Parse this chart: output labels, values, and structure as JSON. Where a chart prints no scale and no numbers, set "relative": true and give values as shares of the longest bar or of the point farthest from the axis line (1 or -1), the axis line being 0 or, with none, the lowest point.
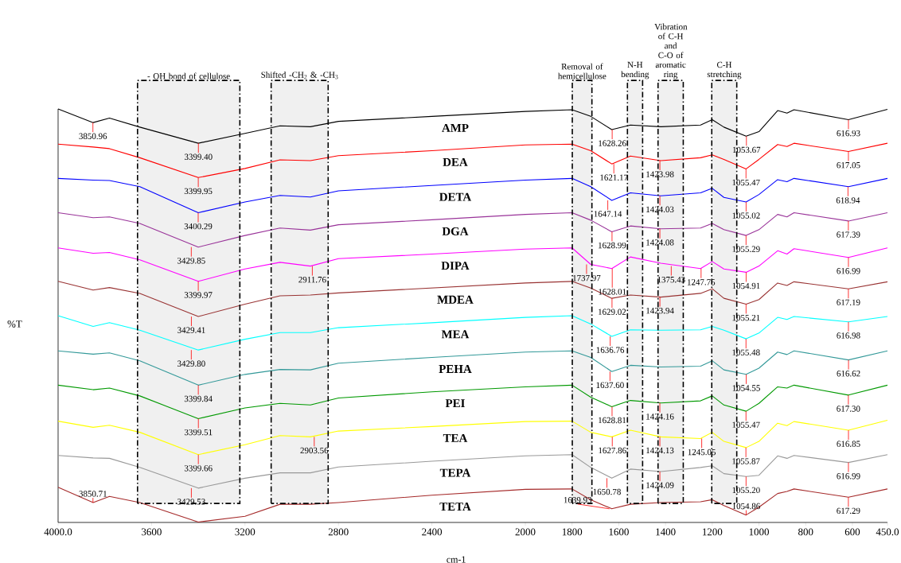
{
  "chart_data": {
    "type": "line",
    "relative": true,
    "xlabel": "cm-1",
    "ylabel": "%T",
    "xlim": [
      4000,
      450
    ],
    "xticks": [
      {
        "value": 4000,
        "label": "4000.0"
      },
      3600,
      3200,
      2800,
      2400,
      2000,
      1800,
      1600,
      1400,
      1200,
      1000,
      800,
      600,
      {
        "value": 450,
        "label": "450.0"
      }
    ],
    "x": [
      4000,
      3850,
      3780,
      3650,
      3400,
      3200,
      3050,
      2920,
      2800,
      2400,
      2000,
      1800,
      1720,
      1630,
      1550,
      1420,
      1250,
      1200,
      1150,
      1055,
      1000,
      920,
      880,
      850,
      617,
      450
    ],
    "series": [
      {
        "name": "AMP",
        "color": "#000000",
        "values": [
          1.0,
          0.967,
          0.978,
          0.956,
          0.917,
          0.941,
          0.959,
          0.957,
          0.97,
          0.982,
          0.994,
          0.998,
          0.982,
          0.95,
          0.961,
          0.957,
          0.961,
          0.974,
          0.956,
          0.934,
          0.945,
          0.996,
          0.99,
          0.998,
          0.974,
          0.999
        ]
      },
      {
        "name": "DEA",
        "color": "#ff0000",
        "values": [
          0.915,
          0.908,
          0.904,
          0.882,
          0.834,
          0.856,
          0.877,
          0.875,
          0.887,
          0.899,
          0.913,
          0.915,
          0.899,
          0.867,
          0.886,
          0.875,
          0.882,
          0.889,
          0.878,
          0.855,
          0.878,
          0.914,
          0.909,
          0.917,
          0.897,
          0.917
        ]
      },
      {
        "name": "DETA",
        "color": "#0000ff",
        "values": [
          0.832,
          0.828,
          0.827,
          0.812,
          0.749,
          0.775,
          0.791,
          0.787,
          0.802,
          0.815,
          0.828,
          0.832,
          0.812,
          0.779,
          0.797,
          0.79,
          0.797,
          0.808,
          0.786,
          0.775,
          0.793,
          0.829,
          0.824,
          0.832,
          0.812,
          0.832
        ]
      },
      {
        "name": "DGA",
        "color": "#993399",
        "values": [
          0.749,
          0.737,
          0.739,
          0.723,
          0.666,
          0.694,
          0.712,
          0.707,
          0.72,
          0.732,
          0.745,
          0.749,
          0.731,
          0.703,
          0.717,
          0.71,
          0.712,
          0.723,
          0.708,
          0.694,
          0.708,
          0.745,
          0.739,
          0.749,
          0.729,
          0.749
        ]
      },
      {
        "name": "DIPA",
        "color": "#ff00ff",
        "values": [
          0.664,
          0.651,
          0.653,
          0.635,
          0.583,
          0.613,
          0.629,
          0.62,
          0.638,
          0.649,
          0.661,
          0.664,
          0.624,
          0.614,
          0.642,
          0.627,
          0.614,
          0.631,
          0.613,
          0.605,
          0.62,
          0.657,
          0.649,
          0.662,
          0.641,
          0.664
        ]
      },
      {
        "name": "MDEA",
        "color": "#993333",
        "values": [
          0.583,
          0.562,
          0.568,
          0.554,
          0.498,
          0.528,
          0.548,
          0.55,
          0.555,
          0.567,
          0.579,
          0.583,
          0.567,
          0.542,
          0.55,
          0.545,
          0.554,
          0.565,
          0.542,
          0.528,
          0.539,
          0.579,
          0.573,
          0.582,
          0.565,
          0.582
        ]
      },
      {
        "name": "MEA",
        "color": "#00ffff",
        "values": [
          0.5,
          0.474,
          0.483,
          0.465,
          0.417,
          0.443,
          0.459,
          0.459,
          0.471,
          0.483,
          0.496,
          0.5,
          0.48,
          0.45,
          0.466,
          0.465,
          0.466,
          0.474,
          0.465,
          0.444,
          0.458,
          0.496,
          0.491,
          0.498,
          0.485,
          0.498
        ]
      },
      {
        "name": "PEHA",
        "color": "#339999",
        "values": [
          0.415,
          0.407,
          0.41,
          0.391,
          0.332,
          0.358,
          0.37,
          0.369,
          0.385,
          0.399,
          0.412,
          0.415,
          0.399,
          0.365,
          0.38,
          0.376,
          0.378,
          0.391,
          0.369,
          0.358,
          0.373,
          0.412,
          0.406,
          0.415,
          0.393,
          0.415
        ]
      },
      {
        "name": "PEI",
        "color": "#009900",
        "values": [
          0.332,
          0.321,
          0.325,
          0.306,
          0.251,
          0.277,
          0.288,
          0.284,
          0.301,
          0.316,
          0.328,
          0.332,
          0.303,
          0.28,
          0.295,
          0.289,
          0.294,
          0.306,
          0.284,
          0.269,
          0.288,
          0.328,
          0.325,
          0.332,
          0.308,
          0.332
        ]
      },
      {
        "name": "TEA",
        "color": "#ffff00",
        "values": [
          0.245,
          0.23,
          0.235,
          0.218,
          0.164,
          0.188,
          0.21,
          0.207,
          0.221,
          0.232,
          0.244,
          0.245,
          0.218,
          0.207,
          0.223,
          0.207,
          0.203,
          0.218,
          0.196,
          0.181,
          0.196,
          0.24,
          0.234,
          0.244,
          0.223,
          0.247
        ]
      },
      {
        "name": "TEPA",
        "color": "#999999",
        "values": [
          0.162,
          0.156,
          0.155,
          0.133,
          0.083,
          0.107,
          0.12,
          0.12,
          0.134,
          0.148,
          0.161,
          0.164,
          0.133,
          0.107,
          0.129,
          0.123,
          0.133,
          0.137,
          0.118,
          0.111,
          0.114,
          0.161,
          0.155,
          0.162,
          0.145,
          0.164
        ]
      },
      {
        "name": "TETA",
        "color": "#a52a2a",
        "values": [
          0.085,
          0.048,
          0.063,
          0.048,
          0.001,
          0.015,
          0.044,
          0.044,
          0.048,
          0.066,
          0.08,
          0.081,
          0.055,
          0.033,
          0.044,
          0.048,
          0.05,
          0.055,
          0.041,
          0.018,
          0.037,
          0.07,
          0.075,
          0.081,
          0.061,
          0.081
        ]
      }
    ],
    "bands": [
      {
        "axis": "x",
        "from": 3660,
        "to": 3222,
        "label": "- OH bond of cellulose",
        "color": "#f0f0f0"
      },
      {
        "axis": "x",
        "from": 3088,
        "to": 2844,
        "label": "Shifted -CH$_{2}$ & -CH$_{3}$",
        "color": "#f0f0f0"
      },
      {
        "axis": "x",
        "from": 1799,
        "to": 1715,
        "label": "Removal of hemicellulose",
        "color": "#f0f0f0"
      },
      {
        "axis": "x",
        "from": 1563,
        "to": 1498,
        "label": "N-H bending",
        "color": "#f0f0f0"
      },
      {
        "axis": "x",
        "from": 1432,
        "to": 1324,
        "label": "Vibration of  C-H and C-O of aromatic ring",
        "color": "#f0f0f0"
      },
      {
        "axis": "x",
        "from": 1202,
        "to": 1095,
        "label": "C-H stretching",
        "color": "#f0f0f0"
      }
    ],
    "annotations": [
      {
        "text": "3850.96",
        "x": 3850.96,
        "y": 0.967
      },
      {
        "text": "3399.40",
        "x": 3399.4,
        "y": 0.917
      },
      {
        "text": "1628.26",
        "x": 1628.26,
        "y": 0.95
      },
      {
        "text": "1053.67",
        "x": 1053.67,
        "y": 0.934
      },
      {
        "text": "616.93",
        "x": 616.93,
        "y": 0.974
      },
      {
        "text": "3399.95",
        "x": 3399.95,
        "y": 0.834
      },
      {
        "text": "1621.17",
        "x": 1621.17,
        "y": 0.867
      },
      {
        "text": "1423.98",
        "x": 1423.98,
        "y": 0.875
      },
      {
        "text": "1055.47",
        "x": 1055.47,
        "y": 0.855
      },
      {
        "text": "617.05",
        "x": 617.05,
        "y": 0.897
      },
      {
        "text": "3400.29",
        "x": 3400.29,
        "y": 0.749
      },
      {
        "text": "1647.14",
        "x": 1647.14,
        "y": 0.779
      },
      {
        "text": "1424.03",
        "x": 1424.03,
        "y": 0.79
      },
      {
        "text": "1055.02",
        "x": 1055.02,
        "y": 0.775
      },
      {
        "text": "618.94",
        "x": 618.94,
        "y": 0.812
      },
      {
        "text": "3429.85",
        "x": 3429.85,
        "y": 0.666
      },
      {
        "text": "1628.99",
        "x": 1628.99,
        "y": 0.703
      },
      {
        "text": "1424.08",
        "x": 1424.08,
        "y": 0.71
      },
      {
        "text": "1055.29",
        "x": 1055.29,
        "y": 0.694
      },
      {
        "text": "617.39",
        "x": 617.39,
        "y": 0.729
      },
      {
        "text": "3399.97",
        "x": 3399.97,
        "y": 0.583
      },
      {
        "text": "2911.76",
        "x": 2911.76,
        "y": 0.62
      },
      {
        "text": "1737.97",
        "x": 1737.97,
        "y": 0.624
      },
      {
        "text": "1628.01",
        "x": 1628.01,
        "y": 0.614
      },
      {
        "text": "1375.43",
        "x": 1375.43,
        "y": 0.62
      },
      {
        "text": "1247.75",
        "x": 1247.75,
        "y": 0.614
      },
      {
        "text": "1054.91",
        "x": 1054.91,
        "y": 0.605
      },
      {
        "text": "616.99",
        "x": 616.99,
        "y": 0.641
      },
      {
        "text": "3429.41",
        "x": 3429.41,
        "y": 0.498
      },
      {
        "text": "1629.02",
        "x": 1629.02,
        "y": 0.542
      },
      {
        "text": "1423.94",
        "x": 1423.94,
        "y": 0.545
      },
      {
        "text": "1055.21",
        "x": 1055.21,
        "y": 0.528
      },
      {
        "text": "617.19",
        "x": 617.19,
        "y": 0.565
      },
      {
        "text": "3429.80",
        "x": 3429.8,
        "y": 0.417
      },
      {
        "text": "1636.76",
        "x": 1636.76,
        "y": 0.45
      },
      {
        "text": "1055.48",
        "x": 1055.48,
        "y": 0.444
      },
      {
        "text": "616.98",
        "x": 616.98,
        "y": 0.485
      },
      {
        "text": "3399.84",
        "x": 3399.84,
        "y": 0.332
      },
      {
        "text": "1637.60",
        "x": 1637.6,
        "y": 0.365
      },
      {
        "text": "1054.55",
        "x": 1054.55,
        "y": 0.358
      },
      {
        "text": "616.62",
        "x": 616.62,
        "y": 0.393
      },
      {
        "text": "3399.51",
        "x": 3399.51,
        "y": 0.251
      },
      {
        "text": "1628.81",
        "x": 1628.81,
        "y": 0.28
      },
      {
        "text": "1424.16",
        "x": 1424.16,
        "y": 0.289
      },
      {
        "text": "1055.47",
        "x": 1055.47,
        "y": 0.269
      },
      {
        "text": "617.30",
        "x": 617.3,
        "y": 0.308
      },
      {
        "text": "3399.66",
        "x": 3399.66,
        "y": 0.164
      },
      {
        "text": "2903.56",
        "x": 2903.56,
        "y": 0.207
      },
      {
        "text": "1627.86",
        "x": 1627.86,
        "y": 0.207
      },
      {
        "text": "1424.13",
        "x": 1424.13,
        "y": 0.207
      },
      {
        "text": "1245.05",
        "x": 1245.05,
        "y": 0.203
      },
      {
        "text": "1055.87",
        "x": 1055.87,
        "y": 0.181
      },
      {
        "text": "616.85",
        "x": 616.85,
        "y": 0.223
      },
      {
        "text": "3429.53",
        "x": 3429.53,
        "y": 0.083
      },
      {
        "text": "1650.78",
        "x": 1650.78,
        "y": 0.107
      },
      {
        "text": "1424.09",
        "x": 1424.09,
        "y": 0.123
      },
      {
        "text": "1055.20",
        "x": 1055.2,
        "y": 0.111
      },
      {
        "text": "616.99",
        "x": 616.99,
        "y": 0.145
      },
      {
        "text": "3850.71",
        "x": 3850.71,
        "y": 0.048
      },
      {
        "text": "1639.93",
        "x": 1639.93,
        "y": 0.033
      },
      {
        "text": "1054.86",
        "x": 1054.86,
        "y": 0.018
      },
      {
        "text": "617.29",
        "x": 617.29,
        "y": 0.061
      }
    ]
  }
}
